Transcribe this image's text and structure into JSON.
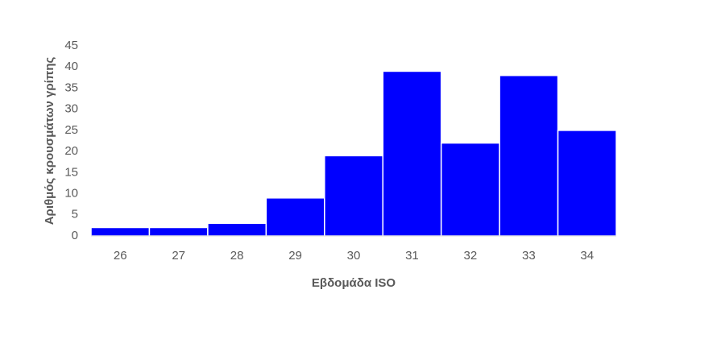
{
  "chart_data": {
    "type": "bar",
    "x_label": "Εβδομάδα ISO",
    "y_label": "Αριθμός κρουσμάτων γρίπης",
    "categories": [
      "26",
      "27",
      "28",
      "29",
      "30",
      "31",
      "32",
      "33",
      "34"
    ],
    "values": [
      2,
      2,
      3,
      9,
      19,
      39,
      22,
      38,
      25
    ],
    "color": "#0000ff",
    "ylim": [
      0,
      45
    ],
    "yticks": [
      0,
      5,
      10,
      15,
      20,
      25,
      30,
      35,
      40,
      45
    ],
    "grid": false
  }
}
